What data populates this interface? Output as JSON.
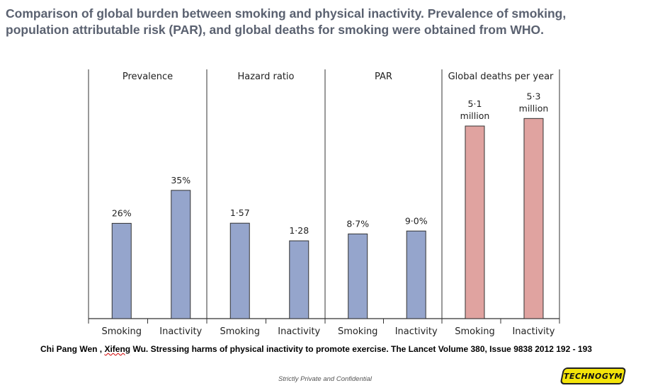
{
  "header": {
    "title_line1": "Comparison of global burden between smoking and physical inactivity. Prevalence of smoking,",
    "title_line2": "population attributable risk (PAR), and global deaths for smoking were obtained from WHO."
  },
  "chart_data": {
    "type": "bar",
    "panels": [
      {
        "title": "Prevalence",
        "categories": [
          "Smoking",
          "Inactivity"
        ],
        "values": [
          26,
          35
        ],
        "labels": [
          "26%",
          "35%"
        ],
        "color": "#95a5cc",
        "ymax": 68
      },
      {
        "title": "Hazard ratio",
        "categories": [
          "Smoking",
          "Inactivity"
        ],
        "values": [
          1.57,
          1.28
        ],
        "labels": [
          "1·57",
          "1·28"
        ],
        "color": "#95a5cc",
        "ymax": 4.1
      },
      {
        "title": "PAR",
        "categories": [
          "Smoking",
          "Inactivity"
        ],
        "values": [
          8.7,
          9.0
        ],
        "labels": [
          "8·7%",
          "9·0%"
        ],
        "color": "#95a5cc",
        "ymax": 25.6
      },
      {
        "title": "Global deaths per year",
        "categories": [
          "Smoking",
          "Inactivity"
        ],
        "values": [
          5.1,
          5.3
        ],
        "labels": [
          "5·1\nmillion",
          "5·3\nmillion"
        ],
        "color": "#e0a3a0",
        "ymax": 6.6
      }
    ]
  },
  "citation": {
    "before": "Chi Pang  Wen , ",
    "underlined": "Xifeng",
    "after": "  Wu. Stressing harms of physical inactivity to promote exercise. The Lancet Volume 380, Issue 9838 2012 192 - 193"
  },
  "footer": {
    "confidential": "Strictly Private and Confidential"
  },
  "logo": {
    "text": "TECHNOGYM"
  }
}
